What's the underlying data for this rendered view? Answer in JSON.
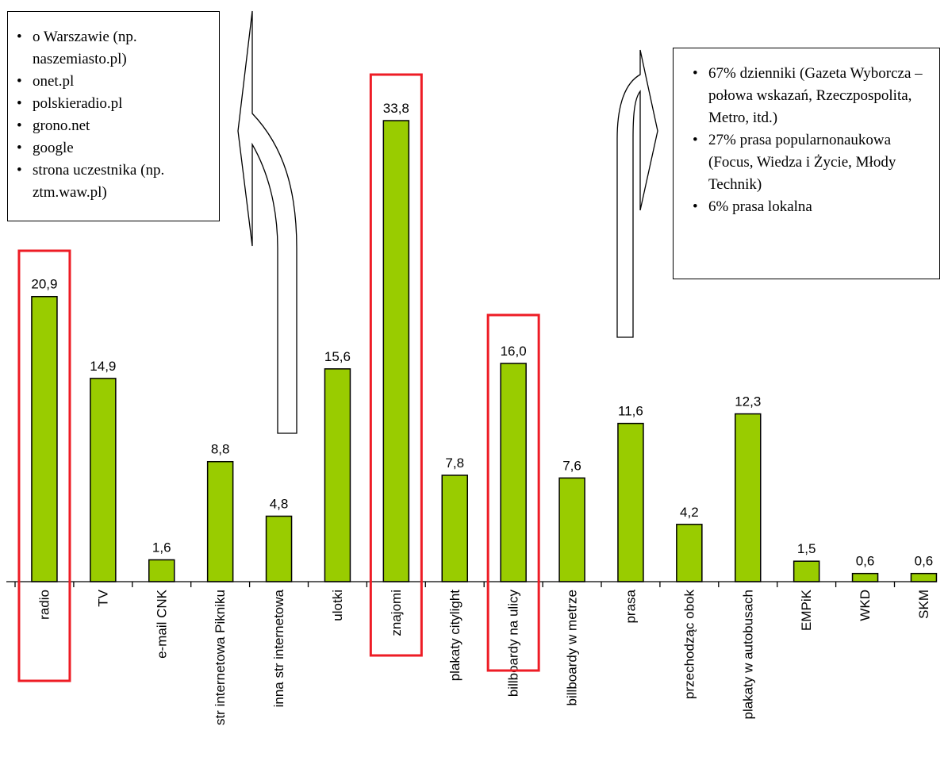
{
  "chart_data": {
    "type": "bar",
    "categories": [
      "radio",
      "TV",
      "e-mail CNK",
      "str internetowa Pikniku",
      "inna str internetowa",
      "ulotki",
      "znajomi",
      "plakaty citylight",
      "billboardy na ulicy",
      "billboardy w metrze",
      "prasa",
      "przechodząc obok",
      "plakaty w autobusach",
      "EMPiK",
      "WKD",
      "SKM"
    ],
    "values": [
      20.9,
      14.9,
      1.6,
      8.8,
      4.8,
      15.6,
      33.8,
      7.8,
      16.0,
      7.6,
      11.6,
      4.2,
      12.3,
      1.5,
      0.6,
      0.6
    ],
    "value_labels": [
      "20,9",
      "14,9",
      "1,6",
      "8,8",
      "4,8",
      "15,6",
      "33,8",
      "7,8",
      "16,0",
      "7,6",
      "11,6",
      "4,2",
      "12,3",
      "1,5",
      "0,6",
      "0,6"
    ],
    "highlighted": [
      "radio",
      "znajomi",
      "billboardy na ulicy"
    ],
    "bar_color": "#99cc00",
    "highlight_color": "#ee1c25",
    "title": "",
    "xlabel": "",
    "ylabel": "",
    "ylim": [
      0,
      36
    ],
    "grid": false,
    "annotations": {
      "internet": [
        "o Warszawie (np. naszemiasto.pl)",
        "onet.pl",
        "polskieradio.pl",
        "grono.net",
        "google",
        "strona uczestnika (np. ztm.waw.pl)"
      ],
      "press": [
        "67% dzienniki (Gazeta Wyborcza – połowa wskazań, Rzeczpospolita, Metro, itd.)",
        "27% prasa popularnonaukowa (Focus, Wiedza i Życie, Młody Technik)",
        "6% prasa lokalna"
      ]
    }
  }
}
